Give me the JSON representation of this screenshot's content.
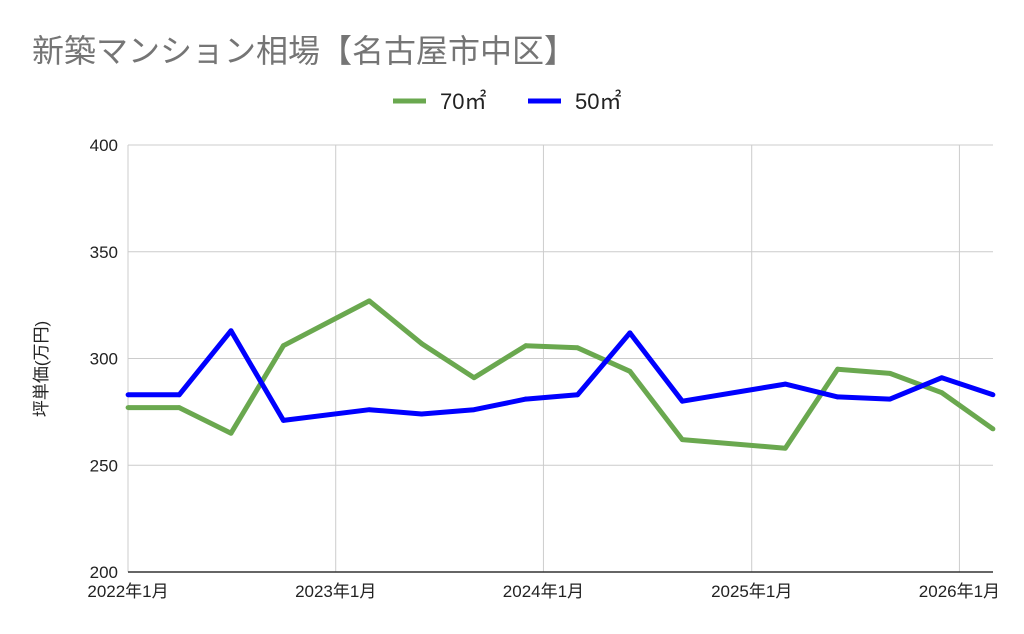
{
  "chart_data": {
    "type": "line",
    "title": "新築マンション相場【名古屋市中区】",
    "ylabel": "坪単価(万円)",
    "ylim": [
      200,
      400
    ],
    "yticks": [
      200,
      250,
      300,
      350,
      400
    ],
    "xlim": [
      "2022-01-01",
      "2026-03-01"
    ],
    "xticks": [
      {
        "date": "2022-01-01",
        "label": "2022年1月"
      },
      {
        "date": "2023-01-01",
        "label": "2023年1月"
      },
      {
        "date": "2024-01-01",
        "label": "2024年1月"
      },
      {
        "date": "2025-01-01",
        "label": "2025年1月"
      },
      {
        "date": "2026-01-01",
        "label": "2026年1月"
      }
    ],
    "grid": true,
    "legend": "top",
    "x": [
      "2022-01-01",
      "2022-04-01",
      "2022-07-01",
      "2022-10-01",
      "2023-03-01",
      "2023-06-01",
      "2023-09-01",
      "2023-12-01",
      "2024-03-01",
      "2024-06-01",
      "2024-09-01",
      "2025-03-01",
      "2025-06-01",
      "2025-09-01",
      "2025-12-01",
      "2026-03-01"
    ],
    "series": [
      {
        "name": "70㎡",
        "color": "#6aa84f",
        "values": [
          277,
          277,
          265,
          306,
          327,
          307,
          291,
          306,
          305,
          294,
          262,
          258,
          295,
          293,
          284,
          267
        ]
      },
      {
        "name": "50㎡",
        "color": "#0000ff",
        "values": [
          283,
          283,
          313,
          271,
          276,
          274,
          276,
          281,
          283,
          312,
          280,
          288,
          282,
          281,
          291,
          283
        ]
      }
    ]
  }
}
